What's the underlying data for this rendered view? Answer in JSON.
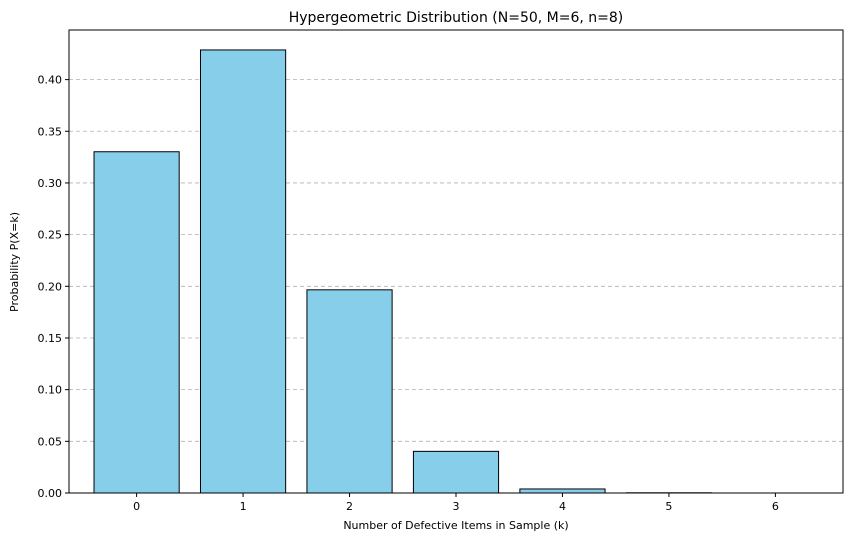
{
  "chart_data": {
    "type": "bar",
    "title": "Hypergeometric Distribution (N=50, M=6, n=8)",
    "xlabel": "Number of Defective Items in Sample (k)",
    "ylabel": "Probability P(X=k)",
    "categories": [
      "0",
      "1",
      "2",
      "3",
      "4",
      "5",
      "6"
    ],
    "values": [
      0.3302,
      0.4287,
      0.1966,
      0.0403,
      0.0039,
      0.0002,
      0.0
    ],
    "ylim": [
      0,
      0.448
    ],
    "yticks": [
      "0.00",
      "0.05",
      "0.10",
      "0.15",
      "0.20",
      "0.25",
      "0.30",
      "0.35",
      "0.40"
    ],
    "grid": "y",
    "bar_color": "#87ceeb",
    "edge_color": "#000000"
  }
}
